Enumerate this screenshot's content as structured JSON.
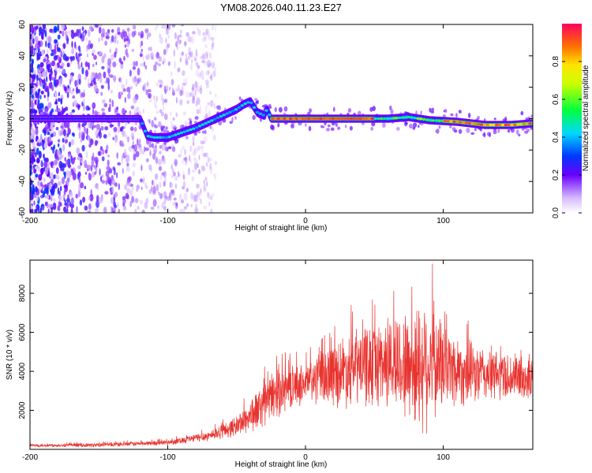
{
  "title": "YM08.2026.040.11.23.E27",
  "chart_data": [
    {
      "type": "heatmap",
      "name": "spectrogram",
      "xlabel": "Height of straight line (km)",
      "ylabel": "Frequency (Hz)",
      "xlim": [
        -200,
        165
      ],
      "ylim": [
        -60,
        60
      ],
      "xticks": [
        -200,
        -100,
        0,
        100
      ],
      "yticks": [
        -60,
        -40,
        -20,
        0,
        20,
        40,
        60
      ],
      "ridge": {
        "x": [
          -200,
          -170,
          -150,
          -130,
          -120,
          -115,
          -110,
          -100,
          -90,
          -80,
          -70,
          -60,
          -50,
          -45,
          -40,
          -35,
          -30,
          -28,
          -25,
          -15,
          0,
          20,
          40,
          60,
          75,
          90,
          110,
          130,
          150,
          165
        ],
        "y": [
          0,
          0,
          0,
          0,
          0,
          -11,
          -12,
          -12,
          -9,
          -6,
          -2,
          2,
          6,
          9,
          11,
          4,
          2,
          6,
          0,
          0,
          0,
          0,
          0,
          0,
          1,
          -1,
          -2,
          -4,
          -4,
          -3
        ]
      },
      "colorbar": {
        "label": "Normalized spectral amplitude",
        "range": [
          0,
          1
        ],
        "ticks": [
          0.0,
          0.2,
          0.4,
          0.6,
          0.8
        ]
      }
    },
    {
      "type": "line",
      "name": "snr",
      "xlabel": "Height of straight line (km)",
      "ylabel": "SNR (10 * v/v)",
      "xlim": [
        -200,
        165
      ],
      "ylim": [
        0,
        9700
      ],
      "xticks": [
        -200,
        -100,
        0,
        100
      ],
      "yticks": [
        2000,
        4000,
        6000,
        8000
      ],
      "color": "#e8332f",
      "envelope": {
        "x": [
          -200,
          -150,
          -100,
          -70,
          -50,
          -35,
          -20,
          -10,
          0,
          20,
          40,
          60,
          80,
          85,
          100,
          120,
          140,
          165
        ],
        "mean": [
          200,
          220,
          350,
          700,
          1200,
          2000,
          3000,
          3200,
          3400,
          3900,
          4300,
          4500,
          4200,
          4600,
          4300,
          3900,
          3800,
          3600
        ],
        "amp": [
          80,
          120,
          150,
          300,
          600,
          1200,
          1500,
          1200,
          1200,
          1900,
          2400,
          2700,
          3500,
          4200,
          2600,
          1800,
          1500,
          1300
        ]
      }
    }
  ]
}
